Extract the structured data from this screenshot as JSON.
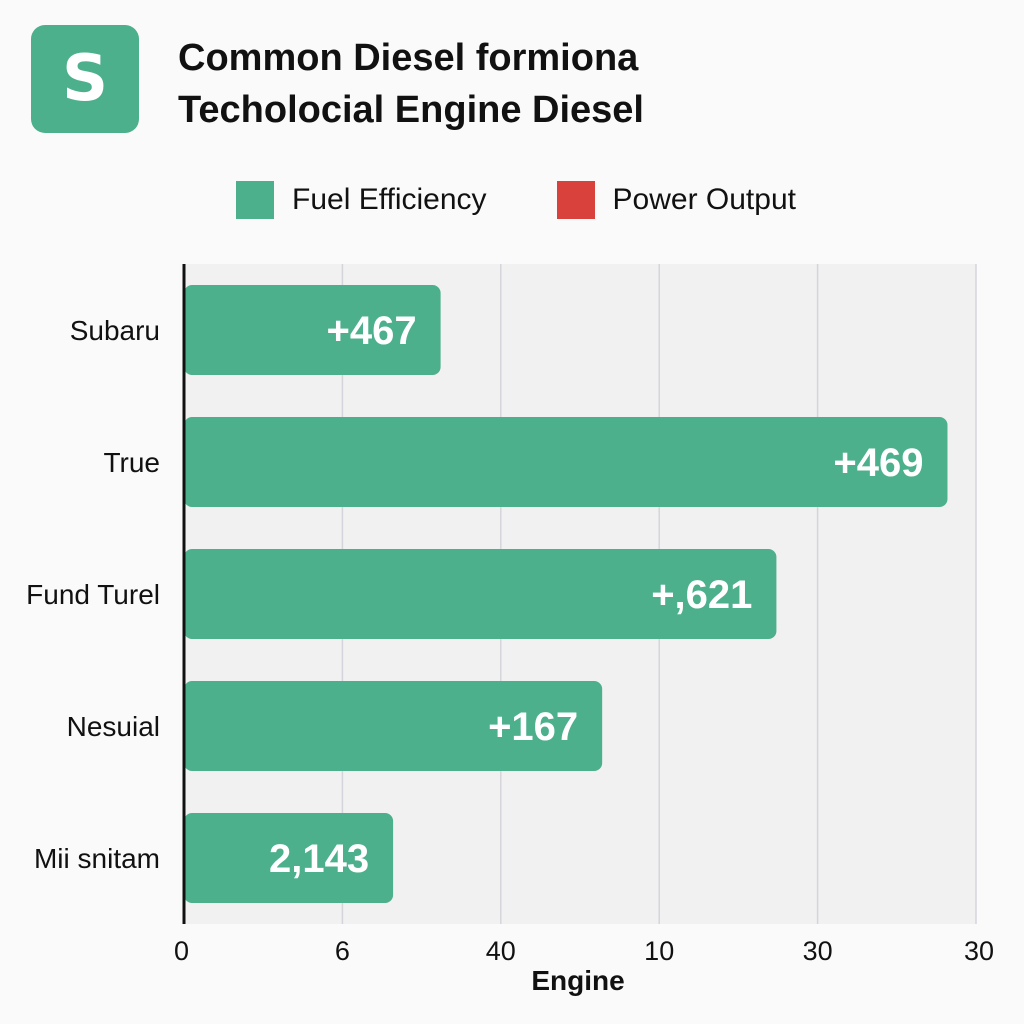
{
  "header": {
    "logo_letter": "S",
    "title_line1": "Common Diesel formiona",
    "title_line2": "Techolocial Engine Diesel"
  },
  "colors": {
    "brand": "#4db08d",
    "fuel_efficiency": "#4db08d",
    "power_output": "#d8413c",
    "plot_background": "#f1f1f1",
    "grid": "#d4d4dc"
  },
  "legend": {
    "items": [
      {
        "label": "Fuel Efficiency",
        "color": "#4db08d",
        "icon": "green-square-swatch"
      },
      {
        "label": "Power Output",
        "color": "#d8413c",
        "icon": "red-square-swatch"
      }
    ]
  },
  "chart_data": {
    "type": "bar",
    "orientation": "horizontal",
    "title": "Common Diesel formiona Techolocial Engine Diesel",
    "xlabel": "Engine",
    "ylabel": "",
    "x_tick_labels": [
      "0",
      "6",
      "40",
      "10",
      "30",
      "30"
    ],
    "categories": [
      "Subaru",
      "True",
      "Fund Turel",
      "Nesuial",
      "Mii snitam"
    ],
    "series": [
      {
        "name": "Fuel Efficiency",
        "color": "#4db08d",
        "values": [
          8.1,
          24.1,
          18.7,
          13.2,
          6.6
        ],
        "labels": [
          "+467",
          "+469",
          "+,621",
          "+167",
          "2,143"
        ]
      }
    ],
    "xlim": [
      0,
      25
    ],
    "grid": true,
    "legend_position": "top"
  }
}
